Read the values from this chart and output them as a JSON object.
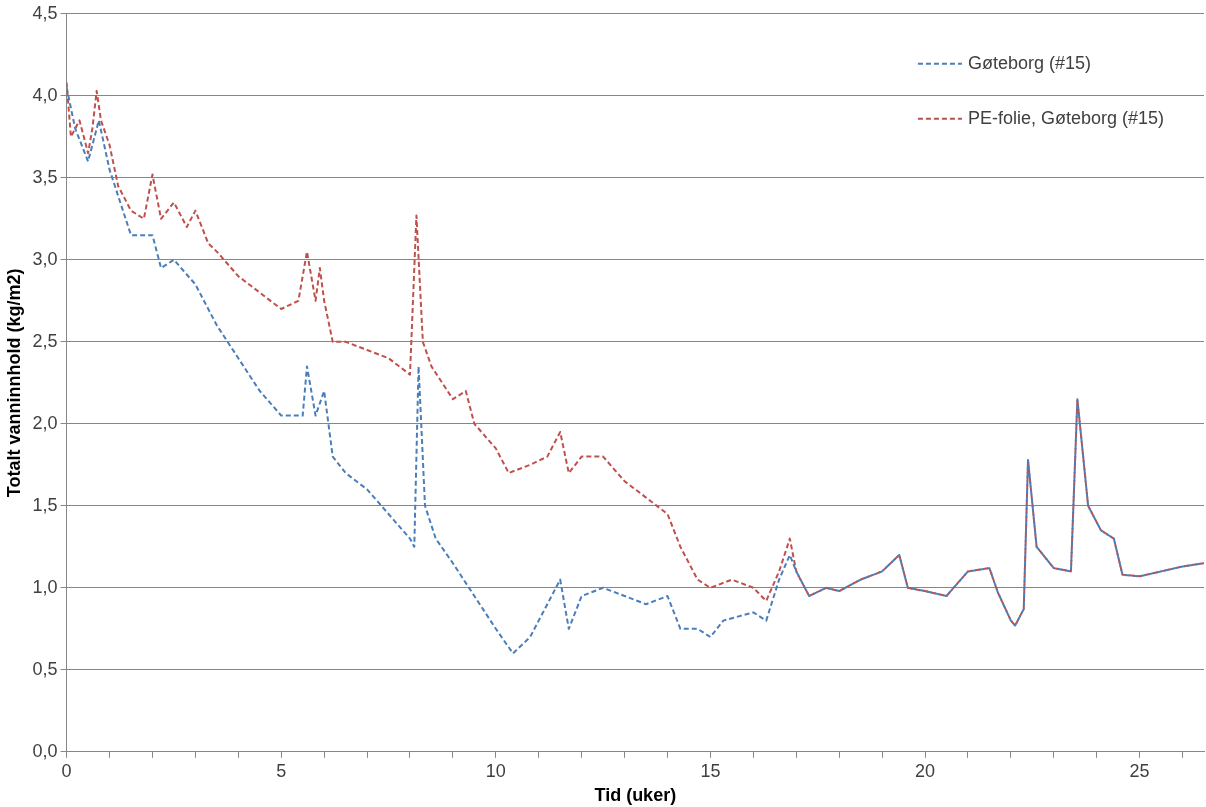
{
  "chart_data": {
    "type": "line",
    "xlabel": "Tid (uker)",
    "ylabel": "Totalt vanninnhold (kg/m2)",
    "xlim": [
      0,
      26.5
    ],
    "ylim": [
      0,
      4.5
    ],
    "xticks": [
      0,
      {
        "value": 1,
        "label": null
      },
      {
        "value": 2,
        "label": null
      },
      {
        "value": 3,
        "label": null
      },
      {
        "value": 4,
        "label": null
      },
      5,
      {
        "value": 6,
        "label": null
      },
      {
        "value": 7,
        "label": null
      },
      {
        "value": 8,
        "label": null
      },
      {
        "value": 9,
        "label": null
      },
      10,
      {
        "value": 11,
        "label": null
      },
      {
        "value": 12,
        "label": null
      },
      {
        "value": 13,
        "label": null
      },
      {
        "value": 14,
        "label": null
      },
      15,
      {
        "value": 16,
        "label": null
      },
      {
        "value": 17,
        "label": null
      },
      {
        "value": 18,
        "label": null
      },
      {
        "value": 19,
        "label": null
      },
      20,
      {
        "value": 21,
        "label": null
      },
      {
        "value": 22,
        "label": null
      },
      {
        "value": 23,
        "label": null
      },
      {
        "value": 24,
        "label": null
      },
      25,
      {
        "value": 26,
        "label": null
      }
    ],
    "yticks": [
      {
        "value": 0,
        "label": "0,0"
      },
      {
        "value": 0.5,
        "label": "0,5"
      },
      {
        "value": 1,
        "label": "1,0"
      },
      {
        "value": 1.5,
        "label": "1,5"
      },
      {
        "value": 2,
        "label": "2,0"
      },
      {
        "value": 2.5,
        "label": "2,5"
      },
      {
        "value": 3,
        "label": "3,0"
      },
      {
        "value": 3.5,
        "label": "3,5"
      },
      {
        "value": 4,
        "label": "4,0"
      },
      {
        "value": 4.5,
        "label": "4,5"
      }
    ],
    "grid": "y",
    "legend": "top right",
    "marker": "none",
    "line_style": "dashed",
    "series": [
      {
        "name": "Gøteborg (#15)",
        "color": "#4a7ebb",
        "x": [
          0,
          0.2,
          0.5,
          0.6,
          0.75,
          1.0,
          1.5,
          2.0,
          2.2,
          2.5,
          3.0,
          3.5,
          4.0,
          4.5,
          5.0,
          5.5,
          5.6,
          5.8,
          6.0,
          6.2,
          6.5,
          7.0,
          7.5,
          8.0,
          8.1,
          8.2,
          8.35,
          8.6,
          9.0,
          9.5,
          10.0,
          10.4,
          10.8,
          11.2,
          11.5,
          11.7,
          12.0,
          12.5,
          13.0,
          13.5,
          14.0,
          14.3,
          14.7,
          15.0,
          15.3,
          16.0,
          16.3,
          16.6,
          16.85,
          17.0,
          17.3,
          17.7,
          18.0,
          18.5,
          19.0,
          19.4,
          19.6,
          20.0,
          20.5,
          21.0,
          21.5,
          21.7,
          22.0,
          22.1,
          22.3,
          22.4,
          22.6,
          23.0,
          23.4,
          23.55,
          23.8,
          24.1,
          24.4,
          24.6,
          25.0,
          25.5,
          26.0,
          26.5
        ],
        "values": [
          4.05,
          3.8,
          3.6,
          3.7,
          3.85,
          3.55,
          3.15,
          3.15,
          2.95,
          3.0,
          2.85,
          2.6,
          2.4,
          2.2,
          2.05,
          2.05,
          2.35,
          2.05,
          2.2,
          1.8,
          1.7,
          1.6,
          1.45,
          1.3,
          1.25,
          2.35,
          1.5,
          1.3,
          1.15,
          0.95,
          0.75,
          0.6,
          0.7,
          0.9,
          1.05,
          0.75,
          0.95,
          1.0,
          0.95,
          0.9,
          0.95,
          0.75,
          0.75,
          0.7,
          0.8,
          0.85,
          0.8,
          1.05,
          1.2,
          1.1,
          0.95,
          1.0,
          0.98,
          1.05,
          1.1,
          1.2,
          1.0,
          0.98,
          0.95,
          1.1,
          1.12,
          0.97,
          0.8,
          0.77,
          0.87,
          1.78,
          1.25,
          1.12,
          1.1,
          2.15,
          1.5,
          1.35,
          1.3,
          1.08,
          1.07,
          1.1,
          1.13,
          1.15
        ]
      },
      {
        "name": "PE-folie, Gøteborg (#15)",
        "color": "#c0504d",
        "x": [
          0,
          0.1,
          0.3,
          0.5,
          0.6,
          0.7,
          0.8,
          1.0,
          1.2,
          1.5,
          1.8,
          2.0,
          2.2,
          2.5,
          2.8,
          3.0,
          3.3,
          3.5,
          4.0,
          4.5,
          5.0,
          5.4,
          5.6,
          5.8,
          5.9,
          6.0,
          6.2,
          6.5,
          7.0,
          7.5,
          8.0,
          8.15,
          8.3,
          8.5,
          9.0,
          9.3,
          9.5,
          10.0,
          10.3,
          10.8,
          11.2,
          11.5,
          11.7,
          12.0,
          12.5,
          13.0,
          13.5,
          14.0,
          14.3,
          14.7,
          15.0,
          15.5,
          16.0,
          16.3,
          16.6,
          16.85,
          17.0,
          17.3,
          17.7,
          18.0,
          18.5,
          19.0,
          19.4,
          19.6,
          20.0,
          20.5,
          21.0,
          21.5,
          21.7,
          22.0,
          22.1,
          22.3,
          22.4,
          22.6,
          23.0,
          23.4,
          23.55,
          23.8,
          24.1,
          24.4,
          24.6,
          25.0,
          25.5,
          26.0,
          26.5
        ],
        "values": [
          4.08,
          3.75,
          3.85,
          3.65,
          3.8,
          4.03,
          3.85,
          3.7,
          3.45,
          3.3,
          3.25,
          3.52,
          3.25,
          3.35,
          3.2,
          3.3,
          3.1,
          3.05,
          2.9,
          2.8,
          2.7,
          2.75,
          3.05,
          2.75,
          2.95,
          2.75,
          2.5,
          2.5,
          2.45,
          2.4,
          2.3,
          3.27,
          2.5,
          2.35,
          2.15,
          2.2,
          2.0,
          1.85,
          1.7,
          1.75,
          1.8,
          1.95,
          1.7,
          1.8,
          1.8,
          1.65,
          1.55,
          1.45,
          1.25,
          1.05,
          1.0,
          1.05,
          1.0,
          0.92,
          1.1,
          1.3,
          1.1,
          0.95,
          1.0,
          0.98,
          1.05,
          1.1,
          1.2,
          1.0,
          0.98,
          0.95,
          1.1,
          1.12,
          0.97,
          0.8,
          0.77,
          0.87,
          1.78,
          1.25,
          1.12,
          1.1,
          2.15,
          1.5,
          1.35,
          1.3,
          1.08,
          1.07,
          1.1,
          1.13,
          1.15
        ]
      }
    ]
  }
}
